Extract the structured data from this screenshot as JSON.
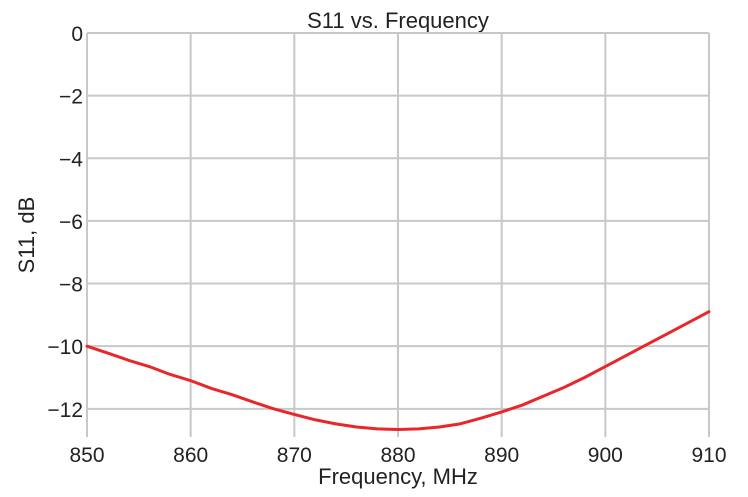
{
  "chart_data": {
    "type": "line",
    "title": "S11 vs. Frequency",
    "xlabel": "Frequency, MHz",
    "ylabel": "S11, dB",
    "xlim": [
      850,
      910
    ],
    "ylim": [
      -12.9,
      0
    ],
    "xticks": [
      850,
      860,
      870,
      880,
      890,
      900,
      910
    ],
    "yticks": [
      0,
      -2,
      -4,
      -6,
      -8,
      -10,
      -12
    ],
    "xtick_labels": [
      "850",
      "860",
      "870",
      "880",
      "890",
      "900",
      "910"
    ],
    "ytick_labels": [
      "0",
      "−2",
      "−4",
      "−6",
      "−8",
      "−10",
      "−12"
    ],
    "grid": true,
    "series": [
      {
        "color": "#e8262b",
        "x": [
          850,
          852,
          854,
          856,
          858,
          860,
          862,
          864,
          866,
          868,
          870,
          872,
          874,
          876,
          878,
          880,
          882,
          884,
          886,
          888,
          890,
          892,
          894,
          896,
          898,
          900,
          902,
          904,
          906,
          908,
          910
        ],
        "y": [
          -10.0,
          -10.22,
          -10.45,
          -10.65,
          -10.9,
          -11.1,
          -11.35,
          -11.55,
          -11.78,
          -12.0,
          -12.18,
          -12.35,
          -12.48,
          -12.58,
          -12.64,
          -12.66,
          -12.64,
          -12.58,
          -12.48,
          -12.3,
          -12.1,
          -11.88,
          -11.6,
          -11.32,
          -11.0,
          -10.65,
          -10.3,
          -9.95,
          -9.6,
          -9.25,
          -8.9
        ]
      }
    ]
  }
}
